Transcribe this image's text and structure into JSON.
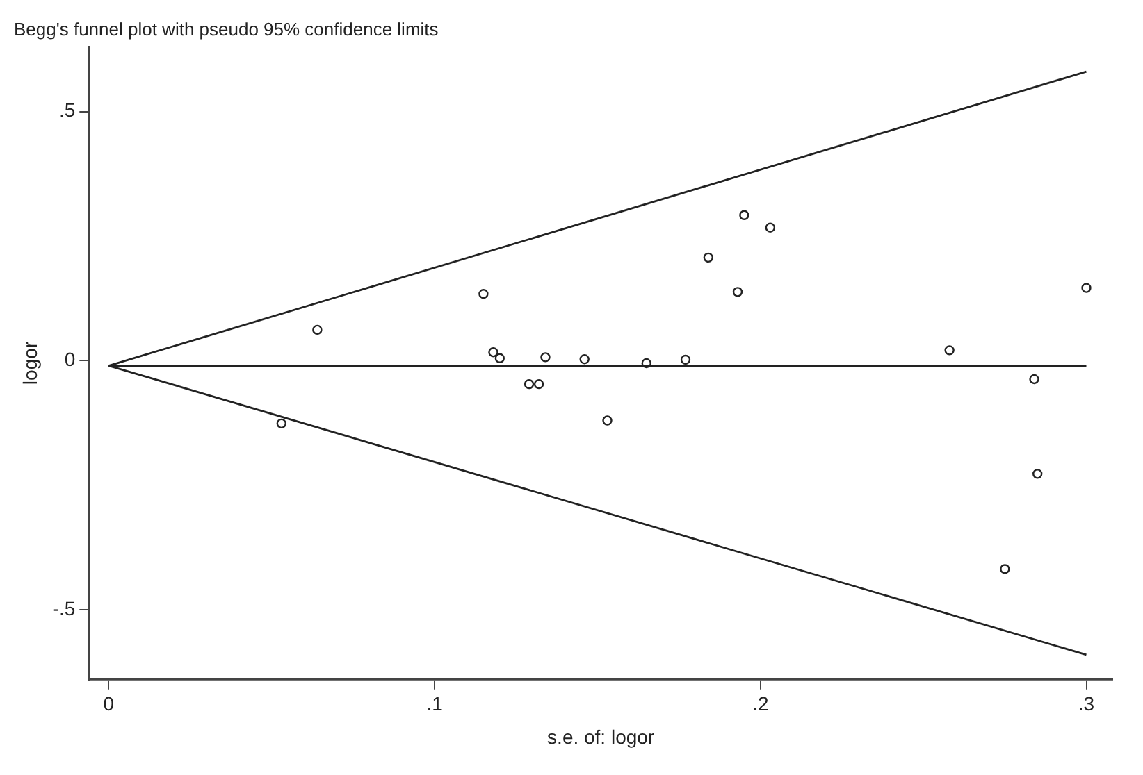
{
  "chart_data": {
    "type": "scatter",
    "title": "Begg's funnel plot with pseudo 95% confidence limits",
    "xlabel": "s.e. of: logor",
    "ylabel": "logor",
    "xlim": [
      -0.006,
      0.308
    ],
    "xticks": [
      0,
      {
        "value": 0.1,
        "label": ".1"
      },
      {
        "value": 0.2,
        "label": ".2"
      },
      {
        "value": 0.3,
        "label": ".3"
      }
    ],
    "ylim": [
      -0.64,
      0.63
    ],
    "yticks": [
      {
        "value": -0.5,
        "label": "-.5"
      },
      0,
      {
        "value": 0.5,
        "label": ".5"
      }
    ],
    "grid": false,
    "legend": false,
    "series": [
      {
        "marker": "circle",
        "color": "#222222",
        "x": [
          0.053,
          0.064,
          0.115,
          0.118,
          0.12,
          0.129,
          0.132,
          0.134,
          0.146,
          0.153,
          0.165,
          0.177,
          0.184,
          0.193,
          0.195,
          0.203,
          0.258,
          0.275,
          0.284,
          0.285,
          0.3
        ],
        "values": [
          -0.126,
          0.062,
          0.134,
          0.017,
          0.005,
          -0.047,
          -0.047,
          0.007,
          0.003,
          -0.12,
          -0.005,
          0.002,
          0.207,
          0.138,
          0.292,
          0.267,
          0.021,
          -0.418,
          -0.037,
          -0.227,
          0.146
        ]
      },
      {
        "type": "line",
        "color": "#222222",
        "x": [
          0,
          0.3
        ],
        "values": [
          -0.01,
          0.58
        ]
      },
      {
        "type": "line",
        "color": "#222222",
        "x": [
          0,
          0.3
        ],
        "values": [
          -0.01,
          -0.01
        ]
      },
      {
        "type": "line",
        "color": "#222222",
        "x": [
          0,
          0.3
        ],
        "values": [
          -0.01,
          -0.59
        ]
      }
    ]
  }
}
